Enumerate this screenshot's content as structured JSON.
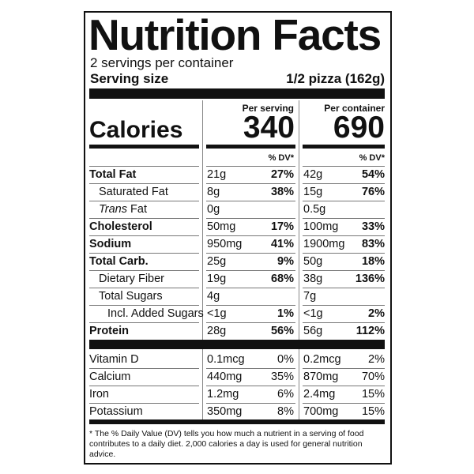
{
  "header": {
    "title": "Nutrition Facts",
    "servings": "2 servings per container",
    "serving_size_label": "Serving size",
    "serving_size": "1/2 pizza (162g)"
  },
  "columns": [
    "Per serving",
    "Per container"
  ],
  "calories": {
    "label": "Calories",
    "values": [
      "340",
      "690"
    ]
  },
  "dv_header": "% DV*",
  "nutrients": [
    {
      "name": "Total Fat",
      "bold": true,
      "level": 0,
      "per_serving": "21g",
      "dv_serving": "27%",
      "per_container": "42g",
      "dv_container": "54%"
    },
    {
      "name": "Saturated Fat",
      "bold": false,
      "level": 1,
      "per_serving": "8g",
      "dv_serving": "38%",
      "per_container": "15g",
      "dv_container": "76%"
    },
    {
      "prefix": "Trans",
      "name": "Fat",
      "bold": false,
      "level": 1,
      "per_serving": "0g",
      "per_container": "0.5g"
    },
    {
      "name": "Cholesterol",
      "bold": true,
      "level": 0,
      "per_serving": "50mg",
      "dv_serving": "17%",
      "per_container": "100mg",
      "dv_container": "33%"
    },
    {
      "name": "Sodium",
      "bold": true,
      "level": 0,
      "per_serving": "950mg",
      "dv_serving": "41%",
      "per_container": "1900mg",
      "dv_container": "83%"
    },
    {
      "name": "Total Carb.",
      "bold": true,
      "level": 0,
      "per_serving": "25g",
      "dv_serving": "9%",
      "per_container": "50g",
      "dv_container": "18%"
    },
    {
      "name": "Dietary Fiber",
      "bold": false,
      "level": 1,
      "per_serving": "19g",
      "dv_serving": "68%",
      "per_container": "38g",
      "dv_container": "136%"
    },
    {
      "name": "Total Sugars",
      "bold": false,
      "level": 1,
      "per_serving": "4g",
      "per_container": "7g"
    },
    {
      "name": "Incl. Added Sugars",
      "bold": false,
      "level": 2,
      "per_serving": "<1g",
      "dv_serving": "1%",
      "per_container": "<1g",
      "dv_container": "2%"
    },
    {
      "name": "Protein",
      "bold": true,
      "level": 0,
      "per_serving": "28g",
      "dv_serving": "56%",
      "per_container": "56g",
      "dv_container": "112%"
    }
  ],
  "vitamins": [
    {
      "name": "Vitamin D",
      "per_serving": "0.1mcg",
      "dv_serving": "0%",
      "per_container": "0.2mcg",
      "dv_container": "2%"
    },
    {
      "name": "Calcium",
      "per_serving": "440mg",
      "dv_serving": "35%",
      "per_container": "870mg",
      "dv_container": "70%"
    },
    {
      "name": "Iron",
      "per_serving": "1.2mg",
      "dv_serving": "6%",
      "per_container": "2.4mg",
      "dv_container": "15%"
    },
    {
      "name": "Potassium",
      "per_serving": "350mg",
      "dv_serving": "8%",
      "per_container": "700mg",
      "dv_container": "15%"
    }
  ],
  "footnote": "* The % Daily Value (DV) tells you how much a nutrient in a serving of food contributes to a daily diet. 2,000 calories a day is used for general nutrition advice."
}
